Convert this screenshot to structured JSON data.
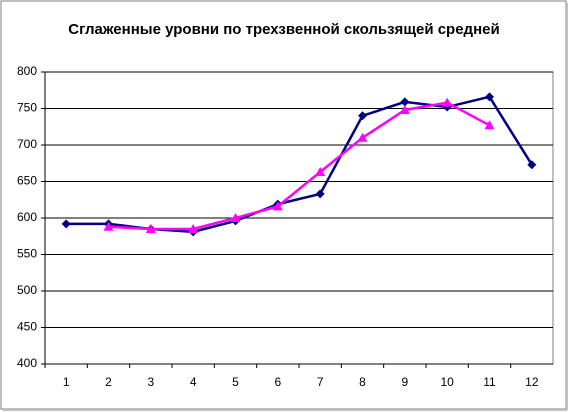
{
  "chart_data": {
    "type": "line",
    "title": "Сглаженные уровни по трехзвенной скользящей средней",
    "categories": [
      "1",
      "2",
      "3",
      "4",
      "5",
      "6",
      "7",
      "8",
      "9",
      "10",
      "11",
      "12"
    ],
    "series": [
      {
        "color": "#000080",
        "marker": "diamond",
        "values": [
          592,
          592,
          585,
          581,
          596,
          619,
          633,
          740,
          759,
          752,
          766,
          673
        ]
      },
      {
        "color": "#ff00ff",
        "marker": "triangle",
        "values": [
          null,
          588,
          585,
          585,
          600,
          616,
          663,
          710,
          748,
          758,
          727,
          null
        ]
      }
    ],
    "ylim": [
      400,
      800
    ],
    "yticks": [
      400,
      450,
      500,
      550,
      600,
      650,
      700,
      750,
      800
    ],
    "grid": true
  }
}
